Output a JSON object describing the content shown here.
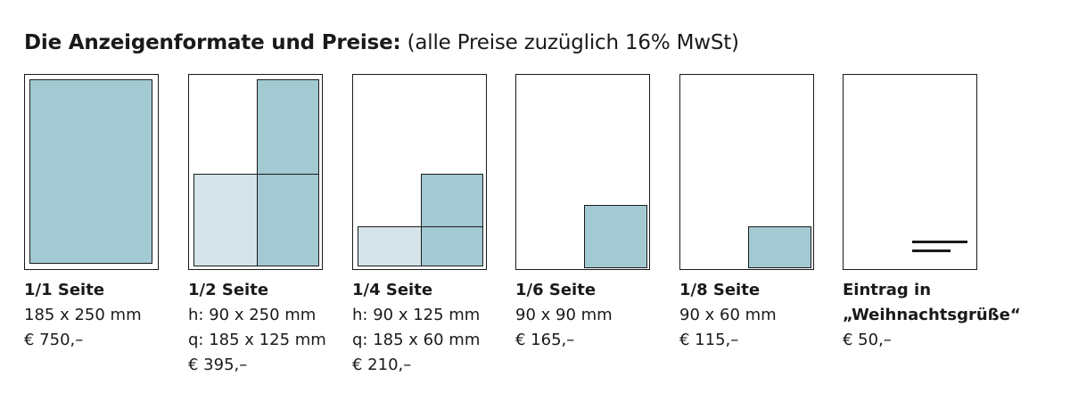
{
  "header": {
    "title_bold": "Die Anzeigenformate und Preise:",
    "title_rest": "(alle Preise zuzüglich 16% MwSt)"
  },
  "colors": {
    "ad_fill": "#a3c9d3",
    "ad_fill_light": "#d4e4e9",
    "outline": "#1a1a1a"
  },
  "formats": [
    {
      "name": "1/1 Seite",
      "lines": [
        "185 x 250 mm",
        "€ 750,–"
      ]
    },
    {
      "name": "1/2 Seite",
      "lines": [
        "h: 90 x 250 mm",
        "q: 185 x 125 mm",
        "€ 395,–"
      ]
    },
    {
      "name": "1/4 Seite",
      "lines": [
        "h: 90 x 125 mm",
        "q: 185 x 60 mm",
        "€ 210,–"
      ]
    },
    {
      "name": "1/6 Seite",
      "lines": [
        "90 x 90 mm",
        "€ 165,–"
      ]
    },
    {
      "name": "1/8 Seite",
      "lines": [
        "90 x 60 mm",
        "€ 115,–"
      ]
    },
    {
      "name_lines": [
        "Eintrag in",
        "„Weihnachtsgrüße“"
      ],
      "lines": [
        "€ 50,–"
      ]
    }
  ]
}
